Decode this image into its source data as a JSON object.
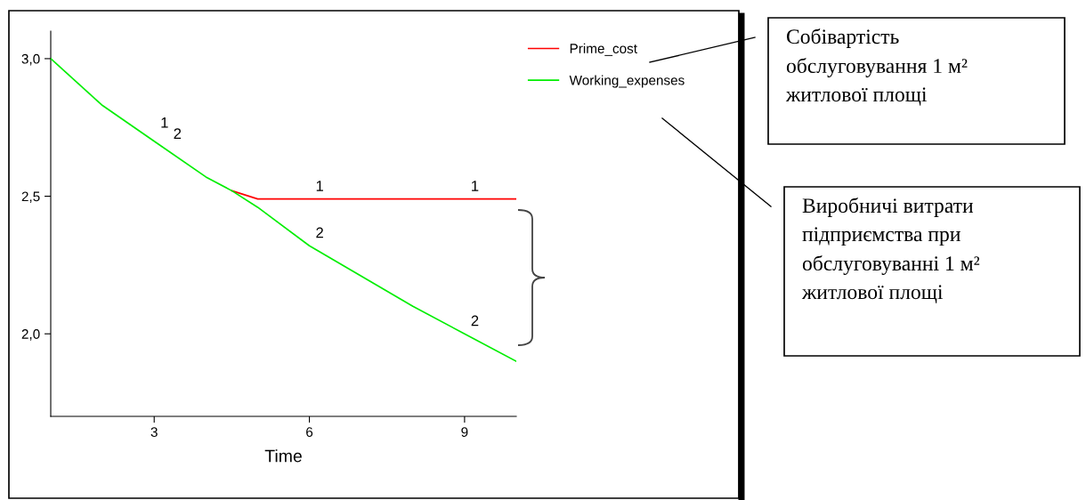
{
  "chart_data": {
    "type": "line",
    "xlabel": "Time",
    "x": [
      1,
      2,
      3,
      4,
      4.5,
      5,
      6,
      7,
      8,
      9,
      10
    ],
    "series": [
      {
        "name": "Prime_cost",
        "color": "#ff0000",
        "values": [
          null,
          null,
          null,
          null,
          2.52,
          2.49,
          2.49,
          2.49,
          2.49,
          2.49,
          2.49
        ]
      },
      {
        "name": "Working_expenses",
        "color": "#00ee00",
        "values": [
          3.0,
          2.83,
          2.7,
          2.57,
          2.52,
          2.46,
          2.32,
          2.21,
          2.1,
          2.0,
          1.9
        ]
      }
    ],
    "xlim": [
      1,
      10
    ],
    "ylim": [
      1.7,
      3.1
    ],
    "xticks": [
      3,
      6,
      9
    ],
    "yticks": [
      {
        "value": 2.0,
        "label": "2,0"
      },
      {
        "value": 2.5,
        "label": "2,5"
      },
      {
        "value": 3.0,
        "label": "3,0"
      }
    ],
    "grid": false,
    "legend": "right",
    "annotations": [
      {
        "text": "1",
        "x": 3,
        "y": 2.72
      },
      {
        "text": "2",
        "x": 3.25,
        "y": 2.68
      },
      {
        "text": "1",
        "x": 6,
        "y": 2.49
      },
      {
        "text": "2",
        "x": 6,
        "y": 2.32
      },
      {
        "text": "1",
        "x": 9,
        "y": 2.49
      },
      {
        "text": "2",
        "x": 9,
        "y": 2.0
      },
      "Собівартість\nобслуговування 1 м²\nжитлової площі",
      "Виробничі витрати\nпідприємства при\nобслуговуванні 1 м²\nжитлової площі"
    ]
  }
}
